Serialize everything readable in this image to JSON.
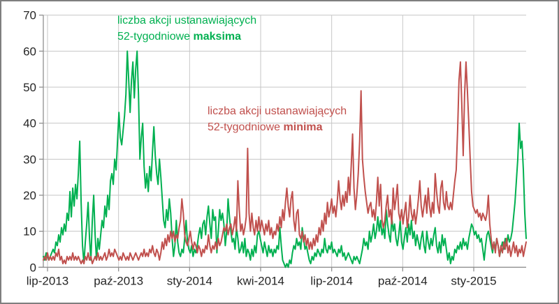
{
  "chart_data": {
    "type": "line",
    "title": "",
    "xlabel": "",
    "ylabel": "",
    "ylim": [
      0,
      70
    ],
    "y_ticks": [
      "0",
      "10",
      "20",
      "30",
      "40",
      "50",
      "60",
      "70"
    ],
    "x_ticks": [
      "lip-2013",
      "paź-2013",
      "sty-2014",
      "kwi-2014",
      "lip-2014",
      "paź-2014",
      "sty-2015"
    ],
    "grid": true,
    "legend_position": "inline-text-annotations",
    "colors": {
      "maksima_green": "#00B050",
      "minima_red": "#C0504D",
      "gridline": "#c6c6c6",
      "axis": "#909090",
      "tick_label": "#262626"
    },
    "annotations": [
      {
        "id": "maksima",
        "line1": "liczba akcji ustanawiających",
        "line2_normal": "52-tygodniowe ",
        "line2_bold": "maksima",
        "color": "#00B050"
      },
      {
        "id": "minima",
        "line1": "liczba akcji ustanawiających",
        "line2_normal": "52-tygodniowe ",
        "line2_bold": "minima",
        "color": "#C0504D"
      }
    ],
    "series": [
      {
        "name": "liczba akcji ustanawiających 52-tygodniowe maksima",
        "color": "#00B050",
        "values": [
          3,
          2,
          4,
          3,
          2,
          3,
          4,
          5,
          4,
          7,
          6,
          9,
          7,
          11,
          9,
          12,
          10,
          15,
          13,
          21,
          14,
          22,
          17,
          23,
          19,
          26,
          35,
          18,
          6,
          1,
          7,
          12,
          18,
          8,
          2,
          13,
          20,
          9,
          2,
          8,
          5,
          9,
          13,
          11,
          17,
          14,
          20,
          16,
          24,
          26,
          23,
          30,
          27,
          35,
          43,
          36,
          34,
          38,
          42,
          48,
          60,
          52,
          43,
          52,
          57,
          47,
          55,
          60,
          48,
          30,
          36,
          40,
          28,
          22,
          26,
          21,
          28,
          24,
          32,
          39,
          31,
          26,
          23,
          30,
          25,
          19,
          13,
          11,
          16,
          13,
          19,
          15,
          8,
          3,
          6,
          13,
          7,
          4,
          3,
          5,
          4,
          8,
          13,
          7,
          5,
          4,
          6,
          3,
          5,
          4,
          6,
          9,
          11,
          8,
          12,
          13,
          9,
          14,
          17,
          12,
          8,
          16,
          13,
          14,
          4,
          10,
          16,
          13,
          15,
          12,
          6,
          10,
          19,
          14,
          10,
          7,
          8,
          5,
          11,
          8,
          4,
          5,
          7,
          4,
          8,
          3,
          5,
          4,
          2,
          5,
          3,
          6,
          4,
          9,
          10,
          8,
          6,
          4,
          7,
          5,
          3,
          6,
          4,
          5,
          3,
          5,
          4,
          6,
          5,
          11,
          6,
          2,
          1,
          0,
          1,
          0,
          2,
          1,
          4,
          6,
          5,
          8,
          6,
          7,
          5,
          11,
          8,
          5,
          6,
          4,
          2,
          1,
          3,
          2,
          4,
          3,
          5,
          4,
          3,
          5,
          4,
          8,
          5,
          4,
          6,
          5,
          7,
          4,
          5,
          4,
          3,
          5,
          4,
          6,
          3,
          4,
          2,
          3,
          4,
          3,
          2,
          1,
          3,
          2,
          3,
          2,
          1,
          3,
          5,
          8,
          6,
          7,
          5,
          10,
          7,
          9,
          12,
          8,
          10,
          14,
          10,
          13,
          9,
          11,
          8,
          16,
          12,
          9,
          7,
          14,
          10,
          12,
          8,
          6,
          9,
          13,
          7,
          5,
          8,
          11,
          7,
          12,
          9,
          13,
          8,
          10,
          6,
          9,
          7,
          5,
          8,
          10,
          6,
          4,
          10,
          7,
          5,
          8,
          6,
          9,
          11,
          6,
          4,
          7,
          4,
          9,
          6,
          8,
          5,
          2,
          4,
          1,
          3,
          2,
          5,
          4,
          6,
          5,
          7,
          5,
          8,
          6,
          7,
          5,
          8,
          10,
          12,
          11,
          9,
          10,
          8,
          9,
          7,
          8,
          5,
          2,
          6,
          9,
          10,
          8,
          6,
          4,
          7,
          5,
          8,
          6,
          3,
          5,
          7,
          5,
          8,
          6,
          9,
          7,
          8,
          10,
          14,
          18,
          24,
          30,
          40,
          33,
          35,
          27,
          15,
          8
        ]
      },
      {
        "name": "liczba akcji ustanawiających 52-tygodniowe minima",
        "color": "#C0504D",
        "values": [
          2,
          3,
          2,
          4,
          2,
          3,
          2,
          3,
          2,
          4,
          3,
          5,
          2,
          3,
          1,
          2,
          1,
          3,
          2,
          3,
          2,
          4,
          2,
          3,
          2,
          3,
          2,
          1,
          2,
          1,
          3,
          2,
          4,
          2,
          3,
          1,
          2,
          3,
          2,
          4,
          2,
          3,
          2,
          3,
          4,
          2,
          3,
          5,
          3,
          4,
          3,
          5,
          4,
          3,
          2,
          3,
          2,
          4,
          3,
          2,
          3,
          2,
          4,
          3,
          2,
          3,
          4,
          3,
          2,
          3,
          4,
          3,
          5,
          3,
          4,
          3,
          5,
          4,
          6,
          4,
          3,
          5,
          4,
          2,
          4,
          7,
          5,
          8,
          6,
          9,
          7,
          10,
          8,
          10,
          7,
          9,
          8,
          11,
          13,
          19,
          15,
          9,
          7,
          6,
          8,
          10,
          7,
          5,
          7,
          6,
          4,
          6,
          5,
          3,
          5,
          4,
          6,
          5,
          9,
          6,
          4,
          6,
          5,
          7,
          5,
          8,
          6,
          7,
          9,
          11,
          10,
          12,
          9,
          11,
          12,
          9,
          11,
          14,
          10,
          24,
          16,
          10,
          12,
          9,
          11,
          14,
          33,
          15,
          10,
          15,
          11,
          9,
          13,
          10,
          14,
          10,
          13,
          11,
          9,
          12,
          10,
          13,
          9,
          11,
          8,
          10,
          9,
          12,
          10,
          14,
          11,
          16,
          13,
          18,
          22,
          17,
          14,
          19,
          21,
          13,
          10,
          15,
          16,
          9,
          8,
          10,
          7,
          9,
          6,
          8,
          5,
          7,
          5,
          8,
          6,
          9,
          7,
          11,
          9,
          13,
          10,
          15,
          12,
          18,
          14,
          16,
          19,
          15,
          17,
          14,
          18,
          24,
          19,
          16,
          20,
          17,
          21,
          18,
          25,
          20,
          28,
          37,
          22,
          16,
          20,
          26,
          35,
          49,
          30,
          25,
          21,
          18,
          15,
          17,
          18,
          14,
          16,
          13,
          18,
          25,
          17,
          23,
          13,
          11,
          13,
          17,
          20,
          14,
          16,
          12,
          22,
          16,
          19,
          23,
          15,
          13,
          16,
          12,
          15,
          18,
          11,
          14,
          20,
          15,
          13,
          16,
          12,
          15,
          19,
          24,
          17,
          14,
          17,
          20,
          15,
          22,
          17,
          14,
          18,
          15,
          26,
          21,
          17,
          15,
          22,
          24,
          18,
          16,
          21,
          17,
          16,
          18,
          16,
          20,
          24,
          27,
          38,
          52,
          57,
          45,
          31,
          48,
          57,
          49,
          40,
          30,
          21,
          17,
          16,
          15,
          16,
          14,
          15,
          13,
          15,
          14,
          13,
          15,
          20,
          12,
          8,
          5,
          7,
          4,
          8,
          6,
          3,
          6,
          4,
          7,
          5,
          8,
          4,
          6,
          3,
          5,
          7,
          4,
          6,
          3,
          5,
          4,
          6,
          3,
          5,
          7
        ]
      }
    ]
  }
}
